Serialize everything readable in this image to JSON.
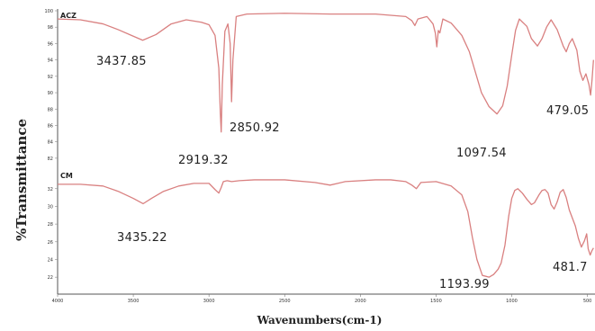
{
  "chart_data": {
    "type": "line",
    "ylabel": "%Transmittance",
    "xlabel": "Wavenumbers(cm-1)",
    "x_ticks": [
      "4000",
      "3500",
      "3000",
      "2500",
      "2000",
      "1500",
      "1000",
      "500"
    ],
    "xlim": [
      4000,
      450
    ],
    "x_reversed": true,
    "colors": {
      "line": "#d98080",
      "axis": "#555555",
      "text": "#222222"
    },
    "panels": [
      {
        "name": "ACZ",
        "ylim": [
          81,
          100
        ],
        "y_ticks": [
          "100",
          "98",
          "96",
          "94",
          "92",
          "90",
          "88",
          "86",
          "84",
          "82"
        ],
        "annotations": [
          "3437.85",
          "2919.32",
          "2850.92",
          "1097.54",
          "479.05"
        ],
        "series": [
          {
            "x": [
              4000,
              3850,
              3700,
              3600,
              3500,
              3437.85,
              3350,
              3250,
              3150,
              3050,
              3000,
              2960,
              2935,
              2925,
              2919.32,
              2912,
              2895,
              2875,
              2860,
              2850.92,
              2842,
              2820,
              2750,
              2500,
              2200,
              1900,
              1700,
              1660,
              1640,
              1620,
              1560,
              1520,
              1505,
              1495,
              1485,
              1475,
              1455,
              1400,
              1330,
              1280,
              1240,
              1200,
              1150,
              1097.54,
              1060,
              1030,
              1000,
              975,
              950,
              900,
              870,
              830,
              800,
              770,
              740,
              700,
              660,
              640,
              620,
              600,
              570,
              550,
              530,
              510,
              490,
              479.05,
              470,
              460
            ],
            "y": [
              99.0,
              98.9,
              98.4,
              97.7,
              96.9,
              96.4,
              97.1,
              98.4,
              98.9,
              98.6,
              98.3,
              97.0,
              93.0,
              87.5,
              85.2,
              91.0,
              97.5,
              98.4,
              96.0,
              88.9,
              94.0,
              99.3,
              99.6,
              99.7,
              99.6,
              99.6,
              99.3,
              98.8,
              98.2,
              99.0,
              99.3,
              98.4,
              97.3,
              95.6,
              97.6,
              97.3,
              99.0,
              98.5,
              97.0,
              95.0,
              92.5,
              90.0,
              88.3,
              87.4,
              88.4,
              90.8,
              94.6,
              97.6,
              99.0,
              98.1,
              96.6,
              95.7,
              96.6,
              98.0,
              98.9,
              97.7,
              95.7,
              95.0,
              96.0,
              96.6,
              95.2,
              92.6,
              91.5,
              92.3,
              91.0,
              89.7,
              91.5,
              94.0
            ]
          }
        ]
      },
      {
        "name": "CM",
        "ylim": [
          21,
          33.5
        ],
        "y_ticks": [
          "32",
          "30",
          "28",
          "26",
          "24",
          "22"
        ],
        "annotations": [
          "3435.22",
          "1193.99",
          "481.7"
        ],
        "series": [
          {
            "x": [
              4000,
              3850,
              3700,
              3600,
              3500,
              3435.22,
              3380,
              3300,
              3200,
              3100,
              3000,
              2960,
              2935,
              2920,
              2905,
              2880,
              2850,
              2800,
              2700,
              2500,
              2300,
              2200,
              2150,
              2100,
              1900,
              1800,
              1700,
              1660,
              1630,
              1600,
              1500,
              1400,
              1330,
              1290,
              1260,
              1230,
              1193.99,
              1150,
              1120,
              1090,
              1070,
              1045,
              1020,
              1000,
              980,
              960,
              930,
              900,
              870,
              850,
              820,
              800,
              780,
              760,
              740,
              720,
              700,
              680,
              660,
              640,
              620,
              600,
              580,
              560,
              540,
              520,
              505,
              495,
              481.7,
              470,
              460
            ],
            "y": [
              32.5,
              32.5,
              32.3,
              31.7,
              30.9,
              30.3,
              30.9,
              31.7,
              32.3,
              32.6,
              32.6,
              31.9,
              31.5,
              32.1,
              32.8,
              32.9,
              32.8,
              32.9,
              33.0,
              33.0,
              32.7,
              32.4,
              32.6,
              32.8,
              33.0,
              33.0,
              32.8,
              32.4,
              32.0,
              32.7,
              32.8,
              32.3,
              31.3,
              29.4,
              26.5,
              24.0,
              22.2,
              22.0,
              22.3,
              22.9,
              23.6,
              25.6,
              28.9,
              30.9,
              31.8,
              32.0,
              31.5,
              30.8,
              30.2,
              30.4,
              31.3,
              31.8,
              31.9,
              31.5,
              30.2,
              29.7,
              30.5,
              31.6,
              31.9,
              31.0,
              29.6,
              28.7,
              27.8,
              26.4,
              25.4,
              26.1,
              26.9,
              25.2,
              24.5,
              25.0,
              25.3
            ]
          }
        ]
      }
    ]
  }
}
